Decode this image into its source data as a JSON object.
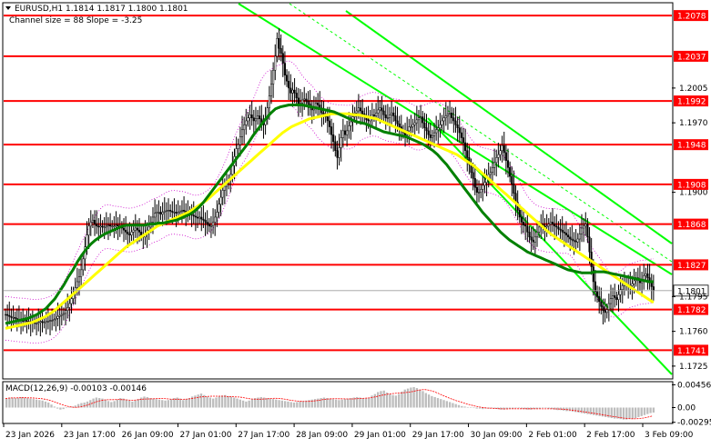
{
  "header": {
    "symbol_line": "EURUSD,H1  1.1814 1.1817 1.1800 1.1801",
    "channel_line": "Channel size = 88 Slope = -3.25"
  },
  "macd": {
    "label": "MACD(12,26,9) -0.00103 -0.00146",
    "axis_ticks": [
      {
        "value": 0.00456,
        "label": "0.00456"
      },
      {
        "value": 0.0,
        "label": "0.00"
      },
      {
        "value": -0.00295,
        "label": "-0.00295"
      }
    ],
    "histogram": [
      0.0018,
      0.002,
      0.002,
      0.0019,
      0.002,
      0.0021,
      0.002,
      0.0019,
      0.0018,
      0.0017,
      0.0016,
      0.0015,
      0.0014,
      0.0012,
      0.001,
      0.0006,
      0.0002,
      -0.0002,
      -0.0004,
      -0.0003,
      -0.0001,
      0.0,
      0.0002,
      0.0004,
      0.0007,
      0.0009,
      0.001,
      0.0012,
      0.0015,
      0.0018,
      0.002,
      0.0019,
      0.0018,
      0.0016,
      0.0013,
      0.0011,
      0.0013,
      0.0016,
      0.0019,
      0.0018,
      0.0016,
      0.0014,
      0.0012,
      0.0014,
      0.0017,
      0.002,
      0.0022,
      0.0021,
      0.0019,
      0.0018,
      0.0017,
      0.0016,
      0.0015,
      0.0014,
      0.0015,
      0.0017,
      0.0019,
      0.002,
      0.0018,
      0.0015,
      0.0017,
      0.0019,
      0.0022,
      0.0024,
      0.0026,
      0.0028,
      0.0025,
      0.0022,
      0.002,
      0.0018,
      0.002,
      0.0022,
      0.0024,
      0.0025,
      0.0023,
      0.0022,
      0.002,
      0.0018,
      0.0016,
      0.0014,
      0.0012,
      0.0014,
      0.0017,
      0.0019,
      0.002,
      0.0021,
      0.002,
      0.0019,
      0.0018,
      0.0017,
      0.0016,
      0.0015,
      0.0014,
      0.0013,
      0.0012,
      0.0011,
      0.001,
      0.0011,
      0.0012,
      0.0013,
      0.0014,
      0.0015,
      0.0016,
      0.0017,
      0.0018,
      0.0019,
      0.002,
      0.0019,
      0.0018,
      0.0017,
      0.0016,
      0.0015,
      0.0016,
      0.0017,
      0.0018,
      0.0019,
      0.002,
      0.0021,
      0.002,
      0.0019,
      0.0018,
      0.002,
      0.0024,
      0.0027,
      0.0031,
      0.0033,
      0.0034,
      0.003,
      0.0027,
      0.0025,
      0.0024,
      0.0027,
      0.0032,
      0.0036,
      0.0038,
      0.004,
      0.0041,
      0.0039,
      0.0036,
      0.0033,
      0.0029,
      0.0026,
      0.0023,
      0.0021,
      0.0019,
      0.0017,
      0.0015,
      0.0013,
      0.0011,
      0.0009,
      0.0007,
      0.0005,
      0.0003,
      0.0002,
      0.0001,
      0.0,
      -0.0001,
      -0.0002,
      -0.0002,
      -0.0003,
      -0.0002,
      -0.0002,
      -0.0001,
      -0.0002,
      -0.0003,
      -0.0004,
      -0.0004,
      -0.0003,
      -0.0002,
      -0.0002,
      -0.0001,
      -0.0001,
      -0.0002,
      -0.0003,
      -0.0004,
      -0.0004,
      -0.0003,
      -0.0003,
      -0.0002,
      -0.0001,
      -0.0001,
      -0.0002,
      -0.0003,
      -0.0004,
      -0.0005,
      -0.0005,
      -0.0006,
      -0.0007,
      -0.0007,
      -0.0008,
      -0.0009,
      -0.001,
      -0.0011,
      -0.0012,
      -0.0013,
      -0.0014,
      -0.0015,
      -0.0016,
      -0.0017,
      -0.0018,
      -0.0019,
      -0.002,
      -0.0021,
      -0.0022,
      -0.0022,
      -0.0023,
      -0.0024,
      -0.0024,
      -0.0023,
      -0.0022,
      -0.0021,
      -0.0019,
      -0.0017,
      -0.0015,
      -0.0013,
      -0.0011,
      -0.001
    ]
  },
  "price_axis": {
    "ticks": [
      {
        "value": 1.2005,
        "label": "1.2005"
      },
      {
        "value": 1.197,
        "label": "1.1970"
      },
      {
        "value": 1.19,
        "label": "1.1900"
      },
      {
        "value": 1.1795,
        "label": "1.1795"
      },
      {
        "value": 1.176,
        "label": "1.1760"
      },
      {
        "value": 1.1725,
        "label": "1.1725"
      }
    ],
    "levels": [
      {
        "value": 1.2078,
        "label": "1.2078"
      },
      {
        "value": 1.2037,
        "label": "1.2037"
      },
      {
        "value": 1.1992,
        "label": "1.1992"
      },
      {
        "value": 1.1948,
        "label": "1.1948"
      },
      {
        "value": 1.1908,
        "label": "1.1908"
      },
      {
        "value": 1.1868,
        "label": "1.1868"
      },
      {
        "value": 1.1827,
        "label": "1.1827"
      },
      {
        "value": 1.1782,
        "label": "1.1782"
      },
      {
        "value": 1.1741,
        "label": "1.1741"
      }
    ],
    "current": {
      "value": 1.1801,
      "label": "1.1801"
    }
  },
  "time_axis": {
    "labels": [
      "23 Jan 2026",
      "23 Jan 17:00",
      "26 Jan 09:00",
      "27 Jan 01:00",
      "27 Jan 17:00",
      "28 Jan 09:00",
      "29 Jan 01:00",
      "29 Jan 17:00",
      "30 Jan 09:00",
      "2 Feb 01:00",
      "2 Feb 17:00",
      "3 Feb 09:00"
    ]
  },
  "colors": {
    "level_line": "#ff0000",
    "level_label_bg": "#ff0000",
    "candle": "#000000",
    "ma_fast": "#008000",
    "ma_slow": "#ffff00",
    "channel": "#00ff00",
    "bollinger": "#cc00cc",
    "macd_hist": "#bdbdbd",
    "macd_signal": "#ff0000"
  },
  "chart_data": {
    "type": "candlestick",
    "symbol": "EURUSD",
    "timeframe": "H1",
    "ohlc_last": {
      "open": 1.1814,
      "high": 1.1817,
      "low": 1.18,
      "close": 1.1801
    },
    "closes": [
      1.1777,
      1.1776,
      1.1775,
      1.1774,
      1.1774,
      1.1773,
      1.1772,
      1.1772,
      1.1771,
      1.177,
      1.1771,
      1.177,
      1.177,
      1.1769,
      1.1769,
      1.1768,
      1.1768,
      1.1769,
      1.177,
      1.1769,
      1.1769,
      1.177,
      1.177,
      1.1771,
      1.1771,
      1.1772,
      1.1773,
      1.1775,
      1.1776,
      1.1777,
      1.1778,
      1.1781,
      1.1784,
      1.1788,
      1.1793,
      1.1799,
      1.1804,
      1.181,
      1.1815,
      1.1822,
      1.1833,
      1.1845,
      1.1857,
      1.1866,
      1.187,
      1.1872,
      1.1868,
      1.1866,
      1.1865,
      1.1866,
      1.1865,
      1.1865,
      1.1866,
      1.1867,
      1.1866,
      1.1866,
      1.1866,
      1.1867,
      1.1866,
      1.1865,
      1.1864,
      1.1862,
      1.186,
      1.1858,
      1.1857,
      1.186,
      1.1862,
      1.1864,
      1.1862,
      1.186,
      1.1857,
      1.1855,
      1.1858,
      1.1862,
      1.1865,
      1.187,
      1.1875,
      1.1879,
      1.188,
      1.188,
      1.1878,
      1.188,
      1.1881,
      1.1882,
      1.1882,
      1.1881,
      1.188,
      1.188,
      1.1879,
      1.188,
      1.1881,
      1.1882,
      1.1881,
      1.188,
      1.188,
      1.1878,
      1.1877,
      1.1876,
      1.1875,
      1.1874,
      1.1875,
      1.1873,
      1.1872,
      1.187,
      1.1868,
      1.1866,
      1.1866,
      1.187,
      1.1875,
      1.188,
      1.1888,
      1.1895,
      1.1902,
      1.1906,
      1.1909,
      1.1912,
      1.1918,
      1.1927,
      1.1936,
      1.1944,
      1.1948,
      1.1956,
      1.1963,
      1.1968,
      1.1972,
      1.1975,
      1.1978,
      1.1975,
      1.1972,
      1.1974,
      1.1977,
      1.1974,
      1.197,
      1.1968,
      1.1974,
      1.1985,
      1.1997,
      1.2009,
      1.2023,
      1.2037,
      1.2055,
      1.2045,
      1.204,
      1.203,
      1.2018,
      1.2012,
      1.2005,
      1.2,
      1.2003,
      1.2,
      1.1995,
      1.1988,
      1.199,
      1.1993,
      1.1994,
      1.1992,
      1.1989,
      1.1985,
      1.1983,
      1.1985,
      1.199,
      1.1988,
      1.1985,
      1.198,
      1.1978,
      1.1976,
      1.1972,
      1.1966,
      1.1958,
      1.1951,
      1.1942,
      1.1935,
      1.1945,
      1.1955,
      1.1962,
      1.1958,
      1.1962,
      1.1967,
      1.1971,
      1.1976,
      1.198,
      1.1982,
      1.1985,
      1.1982,
      1.1979,
      1.1976,
      1.1973,
      1.1972,
      1.1975,
      1.1978,
      1.1977,
      1.198,
      1.1983,
      1.1985,
      1.1982,
      1.1978,
      1.1975,
      1.1975,
      1.1978,
      1.198,
      1.1977,
      1.1972,
      1.1969,
      1.1966,
      1.1962,
      1.196,
      1.1958,
      1.1962,
      1.1966,
      1.1966,
      1.1968,
      1.197,
      1.1973,
      1.1975,
      1.1976,
      1.197,
      1.1965,
      1.1962,
      1.1958,
      1.1955,
      1.1957,
      1.196,
      1.1963,
      1.1965,
      1.1968,
      1.1972,
      1.1975,
      1.1977,
      1.1979,
      1.198,
      1.1975,
      1.1972,
      1.1968,
      1.1965,
      1.196,
      1.1955,
      1.195,
      1.1942,
      1.1935,
      1.1928,
      1.192,
      1.1914,
      1.1905,
      1.19,
      1.19,
      1.1903,
      1.1907,
      1.191,
      1.1915,
      1.1918,
      1.192,
      1.1925,
      1.193,
      1.1935,
      1.1938,
      1.1942,
      1.1947,
      1.194,
      1.1932,
      1.1925,
      1.1916,
      1.1908,
      1.1899,
      1.189,
      1.1882,
      1.1875,
      1.187,
      1.1867,
      1.1866,
      1.186,
      1.1855,
      1.1852,
      1.185,
      1.1855,
      1.186,
      1.1865,
      1.1868,
      1.1866,
      1.1865,
      1.1866,
      1.1868,
      1.187,
      1.1868,
      1.1866,
      1.1865,
      1.1863,
      1.1862,
      1.186,
      1.1859,
      1.1857,
      1.1855,
      1.1853,
      1.1852,
      1.1851,
      1.185,
      1.1853,
      1.1858,
      1.1864,
      1.1866,
      1.1868,
      1.1855,
      1.184,
      1.1825,
      1.181,
      1.18,
      1.1795,
      1.179,
      1.1785,
      1.1781,
      1.1779,
      1.1782,
      1.1788,
      1.1793,
      1.1796,
      1.1794,
      1.1792,
      1.1797,
      1.1802,
      1.1806,
      1.1808,
      1.1807,
      1.1805,
      1.1806,
      1.1808,
      1.1811,
      1.1814,
      1.1812,
      1.1809,
      1.1812,
      1.1816,
      1.1818,
      1.1814,
      1.181,
      1.1805,
      1.1801
    ],
    "ma_fast": [
      1.1768,
      1.1769,
      1.177,
      1.1771,
      1.1772,
      1.1773,
      1.1775,
      1.1777,
      1.178,
      1.1783,
      1.1788,
      1.1793,
      1.18,
      1.1807,
      1.1815,
      1.1822,
      1.183,
      1.1837,
      1.1843,
      1.1848,
      1.1852,
      1.1855,
      1.1858,
      1.186,
      1.1862,
      1.1864,
      1.1866,
      1.1867,
      1.1867,
      1.1867,
      1.1867,
      1.1867,
      1.1868,
      1.1868,
      1.1869,
      1.1869,
      1.187,
      1.1871,
      1.1872,
      1.1874,
      1.1876,
      1.1878,
      1.1881,
      1.1885,
      1.189,
      1.1896,
      1.1902,
      1.1908,
      1.1914,
      1.192,
      1.1926,
      1.1932,
      1.1938,
      1.1944,
      1.195,
      1.1957,
      1.1963,
      1.1969,
      1.1975,
      1.198,
      1.1984,
      1.1986,
      1.1987,
      1.1988,
      1.1988,
      1.1988,
      1.1988,
      1.1987,
      1.1986,
      1.1985,
      1.1984,
      1.1983,
      1.1982,
      1.1981,
      1.1979,
      1.1977,
      1.1975,
      1.1973,
      1.1971,
      1.197,
      1.1969,
      1.1967,
      1.1965,
      1.1963,
      1.1961,
      1.196,
      1.1959,
      1.1958,
      1.1957,
      1.1956,
      1.1954,
      1.1952,
      1.195,
      1.1948,
      1.1945,
      1.1942,
      1.1938,
      1.1933,
      1.1928,
      1.1922,
      1.1916,
      1.191,
      1.1904,
      1.1898,
      1.1892,
      1.1886,
      1.188,
      1.1875,
      1.187,
      1.1865,
      1.186,
      1.1856,
      1.1852,
      1.1849,
      1.1846,
      1.1843,
      1.184,
      1.1838,
      1.1836,
      1.1834,
      1.1832,
      1.183,
      1.1828,
      1.1826,
      1.1824,
      1.1822,
      1.1821,
      1.182,
      1.1819,
      1.1819,
      1.1819,
      1.182,
      1.182,
      1.182,
      1.1819,
      1.1818,
      1.1817,
      1.1816,
      1.1815,
      1.1814,
      1.1813,
      1.1812,
      1.1811,
      1.181,
      1.181
    ],
    "ma_slow": [
      1.1763,
      1.1764,
      1.1765,
      1.1766,
      1.1767,
      1.1768,
      1.1769,
      1.1771,
      1.1773,
      1.1775,
      1.1778,
      1.1781,
      1.1785,
      1.1789,
      1.1793,
      1.1797,
      1.1801,
      1.1805,
      1.1809,
      1.1813,
      1.1817,
      1.1821,
      1.1825,
      1.1829,
      1.1833,
      1.1837,
      1.1841,
      1.1845,
      1.1848,
      1.1851,
      1.1854,
      1.1857,
      1.186,
      1.1863,
      1.1866,
      1.1868,
      1.187,
      1.1872,
      1.1874,
      1.1876,
      1.1878,
      1.188,
      1.1883,
      1.1886,
      1.1889,
      1.1892,
      1.1896,
      1.19,
      1.1904,
      1.1908,
      1.1912,
      1.1916,
      1.192,
      1.1924,
      1.1928,
      1.1932,
      1.1936,
      1.194,
      1.1944,
      1.1948,
      1.1952,
      1.1956,
      1.196,
      1.1963,
      1.1966,
      1.1968,
      1.197,
      1.1972,
      1.1974,
      1.1975,
      1.1976,
      1.1977,
      1.1978,
      1.1979,
      1.1979,
      1.1979,
      1.1979,
      1.1979,
      1.1978,
      1.1978,
      1.1977,
      1.1976,
      1.1975,
      1.1974,
      1.1972,
      1.197,
      1.1968,
      1.1966,
      1.1964,
      1.1962,
      1.196,
      1.1958,
      1.1956,
      1.1954,
      1.1952,
      1.195,
      1.1948,
      1.1946,
      1.1944,
      1.1942,
      1.194,
      1.1938,
      1.1935,
      1.1932,
      1.1929,
      1.1926,
      1.1922,
      1.1918,
      1.1914,
      1.191,
      1.1906,
      1.1902,
      1.1898,
      1.1894,
      1.189,
      1.1886,
      1.1882,
      1.1878,
      1.1874,
      1.187,
      1.1866,
      1.1862,
      1.1858,
      1.1855,
      1.1852,
      1.1849,
      1.1846,
      1.1843,
      1.184,
      1.1837,
      1.1834,
      1.1831,
      1.1828,
      1.1825,
      1.1822,
      1.1819,
      1.1816,
      1.1813,
      1.181,
      1.1807,
      1.1804,
      1.1801,
      1.1798,
      1.1795,
      1.1792,
      1.1789
    ]
  }
}
